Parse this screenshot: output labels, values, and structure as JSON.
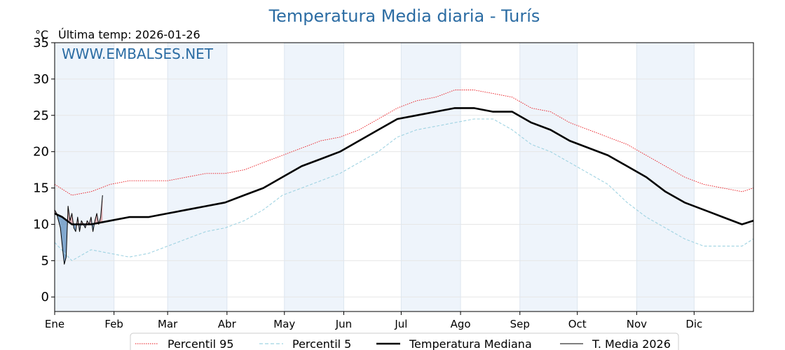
{
  "chart_data": {
    "type": "line",
    "title": "Temperatura Media diaria - Turís",
    "unit": "°C",
    "last_temp_label": "Última temp: 2026-01-26",
    "watermark": "WWW.EMBALSES.NET",
    "ylim": [
      -2,
      35
    ],
    "yticks": [
      0,
      5,
      10,
      15,
      20,
      25,
      30,
      35
    ],
    "xlim": [
      1,
      366
    ],
    "months": [
      {
        "label": "Ene",
        "day": 1
      },
      {
        "label": "Feb",
        "day": 32
      },
      {
        "label": "Mar",
        "day": 60
      },
      {
        "label": "Abr",
        "day": 91
      },
      {
        "label": "May",
        "day": 121
      },
      {
        "label": "Jun",
        "day": 152
      },
      {
        "label": "Jul",
        "day": 182
      },
      {
        "label": "Ago",
        "day": 213
      },
      {
        "label": "Sep",
        "day": 244
      },
      {
        "label": "Oct",
        "day": 274
      },
      {
        "label": "Nov",
        "day": 305
      },
      {
        "label": "Dic",
        "day": 335
      }
    ],
    "grid": true,
    "legend_position": "bottom",
    "series": [
      {
        "name": "Percentil 95",
        "style": "dotted",
        "color": "#e8141a",
        "points": [
          [
            1,
            15.5
          ],
          [
            10,
            14.0
          ],
          [
            20,
            14.5
          ],
          [
            30,
            15.5
          ],
          [
            40,
            16.0
          ],
          [
            50,
            16.0
          ],
          [
            60,
            16.0
          ],
          [
            70,
            16.5
          ],
          [
            80,
            17.0
          ],
          [
            90,
            17.0
          ],
          [
            100,
            17.5
          ],
          [
            110,
            18.5
          ],
          [
            120,
            19.5
          ],
          [
            130,
            20.5
          ],
          [
            140,
            21.5
          ],
          [
            150,
            22.0
          ],
          [
            160,
            23.0
          ],
          [
            170,
            24.5
          ],
          [
            180,
            26.0
          ],
          [
            190,
            27.0
          ],
          [
            200,
            27.5
          ],
          [
            210,
            28.5
          ],
          [
            220,
            28.5
          ],
          [
            230,
            28.0
          ],
          [
            240,
            27.5
          ],
          [
            250,
            26.0
          ],
          [
            260,
            25.5
          ],
          [
            270,
            24.0
          ],
          [
            280,
            23.0
          ],
          [
            290,
            22.0
          ],
          [
            300,
            21.0
          ],
          [
            310,
            19.5
          ],
          [
            320,
            18.0
          ],
          [
            330,
            16.5
          ],
          [
            340,
            15.5
          ],
          [
            350,
            15.0
          ],
          [
            360,
            14.5
          ],
          [
            366,
            15.0
          ]
        ]
      },
      {
        "name": "Percentil 5",
        "style": "dashed",
        "color": "#9fd3e2",
        "points": [
          [
            1,
            7.5
          ],
          [
            10,
            5.0
          ],
          [
            20,
            6.5
          ],
          [
            30,
            6.0
          ],
          [
            40,
            5.5
          ],
          [
            50,
            6.0
          ],
          [
            60,
            7.0
          ],
          [
            70,
            8.0
          ],
          [
            80,
            9.0
          ],
          [
            90,
            9.5
          ],
          [
            100,
            10.5
          ],
          [
            110,
            12.0
          ],
          [
            120,
            14.0
          ],
          [
            130,
            15.0
          ],
          [
            140,
            16.0
          ],
          [
            150,
            17.0
          ],
          [
            160,
            18.5
          ],
          [
            170,
            20.0
          ],
          [
            180,
            22.0
          ],
          [
            190,
            23.0
          ],
          [
            200,
            23.5
          ],
          [
            210,
            24.0
          ],
          [
            220,
            24.5
          ],
          [
            230,
            24.5
          ],
          [
            240,
            23.0
          ],
          [
            250,
            21.0
          ],
          [
            260,
            20.0
          ],
          [
            270,
            18.5
          ],
          [
            280,
            17.0
          ],
          [
            290,
            15.5
          ],
          [
            300,
            13.0
          ],
          [
            310,
            11.0
          ],
          [
            320,
            9.5
          ],
          [
            330,
            8.0
          ],
          [
            340,
            7.0
          ],
          [
            350,
            7.0
          ],
          [
            360,
            7.0
          ],
          [
            366,
            8.0
          ]
        ]
      },
      {
        "name": "Temperatura Mediana",
        "style": "solid-thick",
        "color": "#000000",
        "points": [
          [
            1,
            11.5
          ],
          [
            5,
            11.0
          ],
          [
            10,
            10.0
          ],
          [
            20,
            10.0
          ],
          [
            30,
            10.5
          ],
          [
            40,
            11.0
          ],
          [
            50,
            11.0
          ],
          [
            60,
            11.5
          ],
          [
            70,
            12.0
          ],
          [
            80,
            12.5
          ],
          [
            90,
            13.0
          ],
          [
            100,
            14.0
          ],
          [
            110,
            15.0
          ],
          [
            120,
            16.5
          ],
          [
            130,
            18.0
          ],
          [
            140,
            19.0
          ],
          [
            150,
            20.0
          ],
          [
            160,
            21.5
          ],
          [
            170,
            23.0
          ],
          [
            180,
            24.5
          ],
          [
            190,
            25.0
          ],
          [
            200,
            25.5
          ],
          [
            210,
            26.0
          ],
          [
            220,
            26.0
          ],
          [
            230,
            25.5
          ],
          [
            240,
            25.5
          ],
          [
            250,
            24.0
          ],
          [
            260,
            23.0
          ],
          [
            270,
            21.5
          ],
          [
            280,
            20.5
          ],
          [
            290,
            19.5
          ],
          [
            300,
            18.0
          ],
          [
            310,
            16.5
          ],
          [
            320,
            14.5
          ],
          [
            330,
            13.0
          ],
          [
            340,
            12.0
          ],
          [
            350,
            11.0
          ],
          [
            360,
            10.0
          ],
          [
            366,
            10.5
          ]
        ]
      },
      {
        "name": "T. Media 2026",
        "style": "solid-thin",
        "color": "#000000",
        "points": [
          [
            1,
            12.0
          ],
          [
            2,
            11.5
          ],
          [
            3,
            10.5
          ],
          [
            4,
            9.5
          ],
          [
            5,
            7.0
          ],
          [
            6,
            4.5
          ],
          [
            7,
            5.5
          ],
          [
            8,
            12.5
          ],
          [
            9,
            10.5
          ],
          [
            10,
            11.5
          ],
          [
            11,
            9.5
          ],
          [
            12,
            9.0
          ],
          [
            13,
            11.0
          ],
          [
            14,
            9.0
          ],
          [
            15,
            10.5
          ],
          [
            16,
            10.0
          ],
          [
            17,
            9.5
          ],
          [
            18,
            10.5
          ],
          [
            19,
            10.0
          ],
          [
            20,
            11.0
          ],
          [
            21,
            9.0
          ],
          [
            22,
            10.5
          ],
          [
            23,
            11.5
          ],
          [
            24,
            10.0
          ],
          [
            25,
            11.0
          ],
          [
            26,
            14.0
          ]
        ]
      }
    ]
  }
}
